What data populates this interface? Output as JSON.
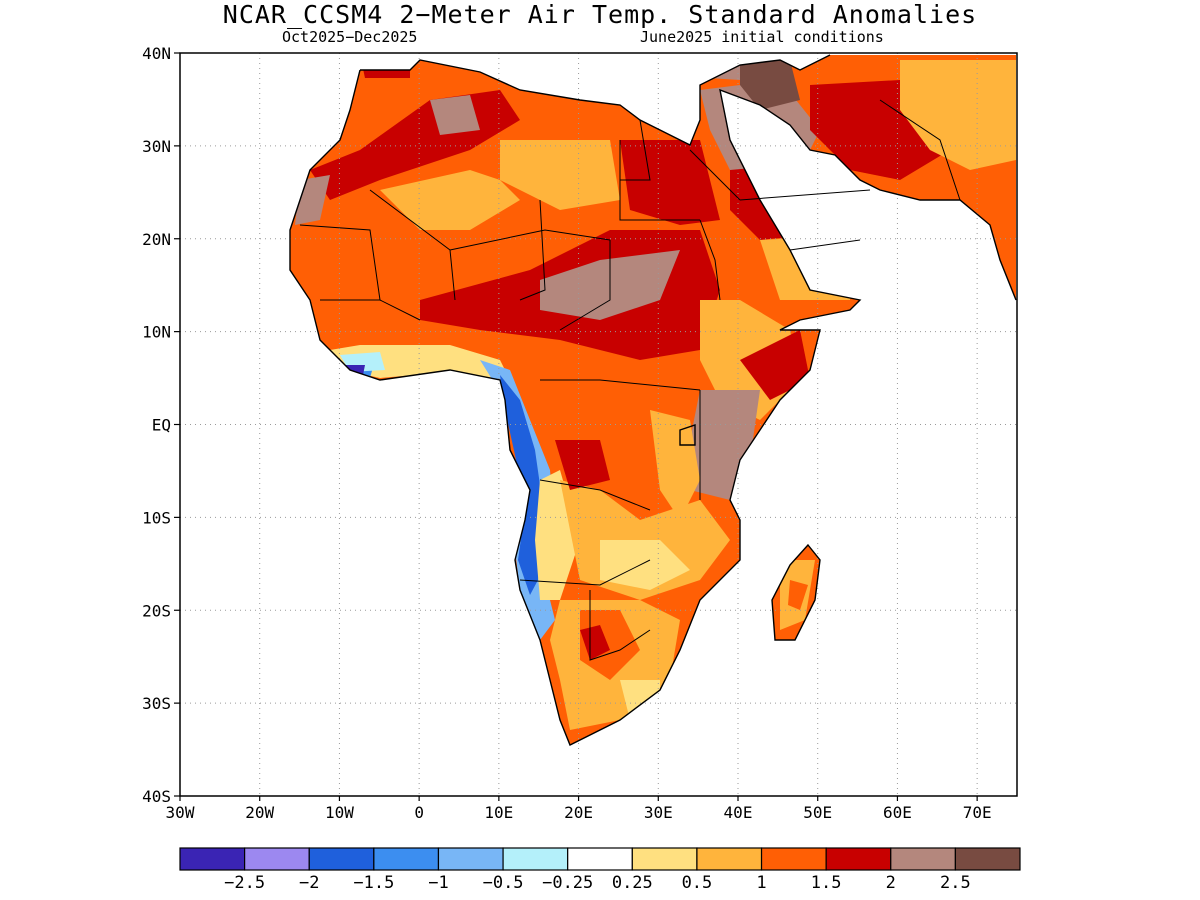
{
  "title": "NCAR_CCSM4 2−Meter Air Temp. Standard Anomalies",
  "subtitle_left": "Oct2025−Dec2025",
  "subtitle_right": "June2025 initial conditions",
  "map": {
    "lon_range": [
      -30,
      75
    ],
    "lat_range": [
      -40,
      40
    ],
    "lat_ticks": [
      {
        "value": 40,
        "label": "40N"
      },
      {
        "value": 30,
        "label": "30N"
      },
      {
        "value": 20,
        "label": "20N"
      },
      {
        "value": 10,
        "label": "10N"
      },
      {
        "value": 0,
        "label": "EQ"
      },
      {
        "value": -10,
        "label": "10S"
      },
      {
        "value": -20,
        "label": "20S"
      },
      {
        "value": -30,
        "label": "30S"
      },
      {
        "value": -40,
        "label": "40S"
      }
    ],
    "lon_ticks": [
      {
        "value": -30,
        "label": "30W"
      },
      {
        "value": -20,
        "label": "20W"
      },
      {
        "value": -10,
        "label": "10W"
      },
      {
        "value": 0,
        "label": "0"
      },
      {
        "value": 10,
        "label": "10E"
      },
      {
        "value": 20,
        "label": "20E"
      },
      {
        "value": 30,
        "label": "30E"
      },
      {
        "value": 40,
        "label": "40E"
      },
      {
        "value": 50,
        "label": "50E"
      },
      {
        "value": 60,
        "label": "60E"
      },
      {
        "value": 70,
        "label": "70E"
      }
    ],
    "gridlines": true
  },
  "colorbar": {
    "colors": [
      "#3a24b4",
      "#9c88f0",
      "#1f60dc",
      "#3c8ef0",
      "#78b6f6",
      "#b4f0fa",
      "#ffffff",
      "#ffe080",
      "#ffb43c",
      "#ff5f05",
      "#c80000",
      "#b4877d",
      "#784b41"
    ],
    "labels": [
      "−2.5",
      "−2",
      "−1.5",
      "−1",
      "−0.5",
      "−0.25",
      "0.25",
      "0.5",
      "1",
      "1.5",
      "2",
      "2.5"
    ]
  }
}
